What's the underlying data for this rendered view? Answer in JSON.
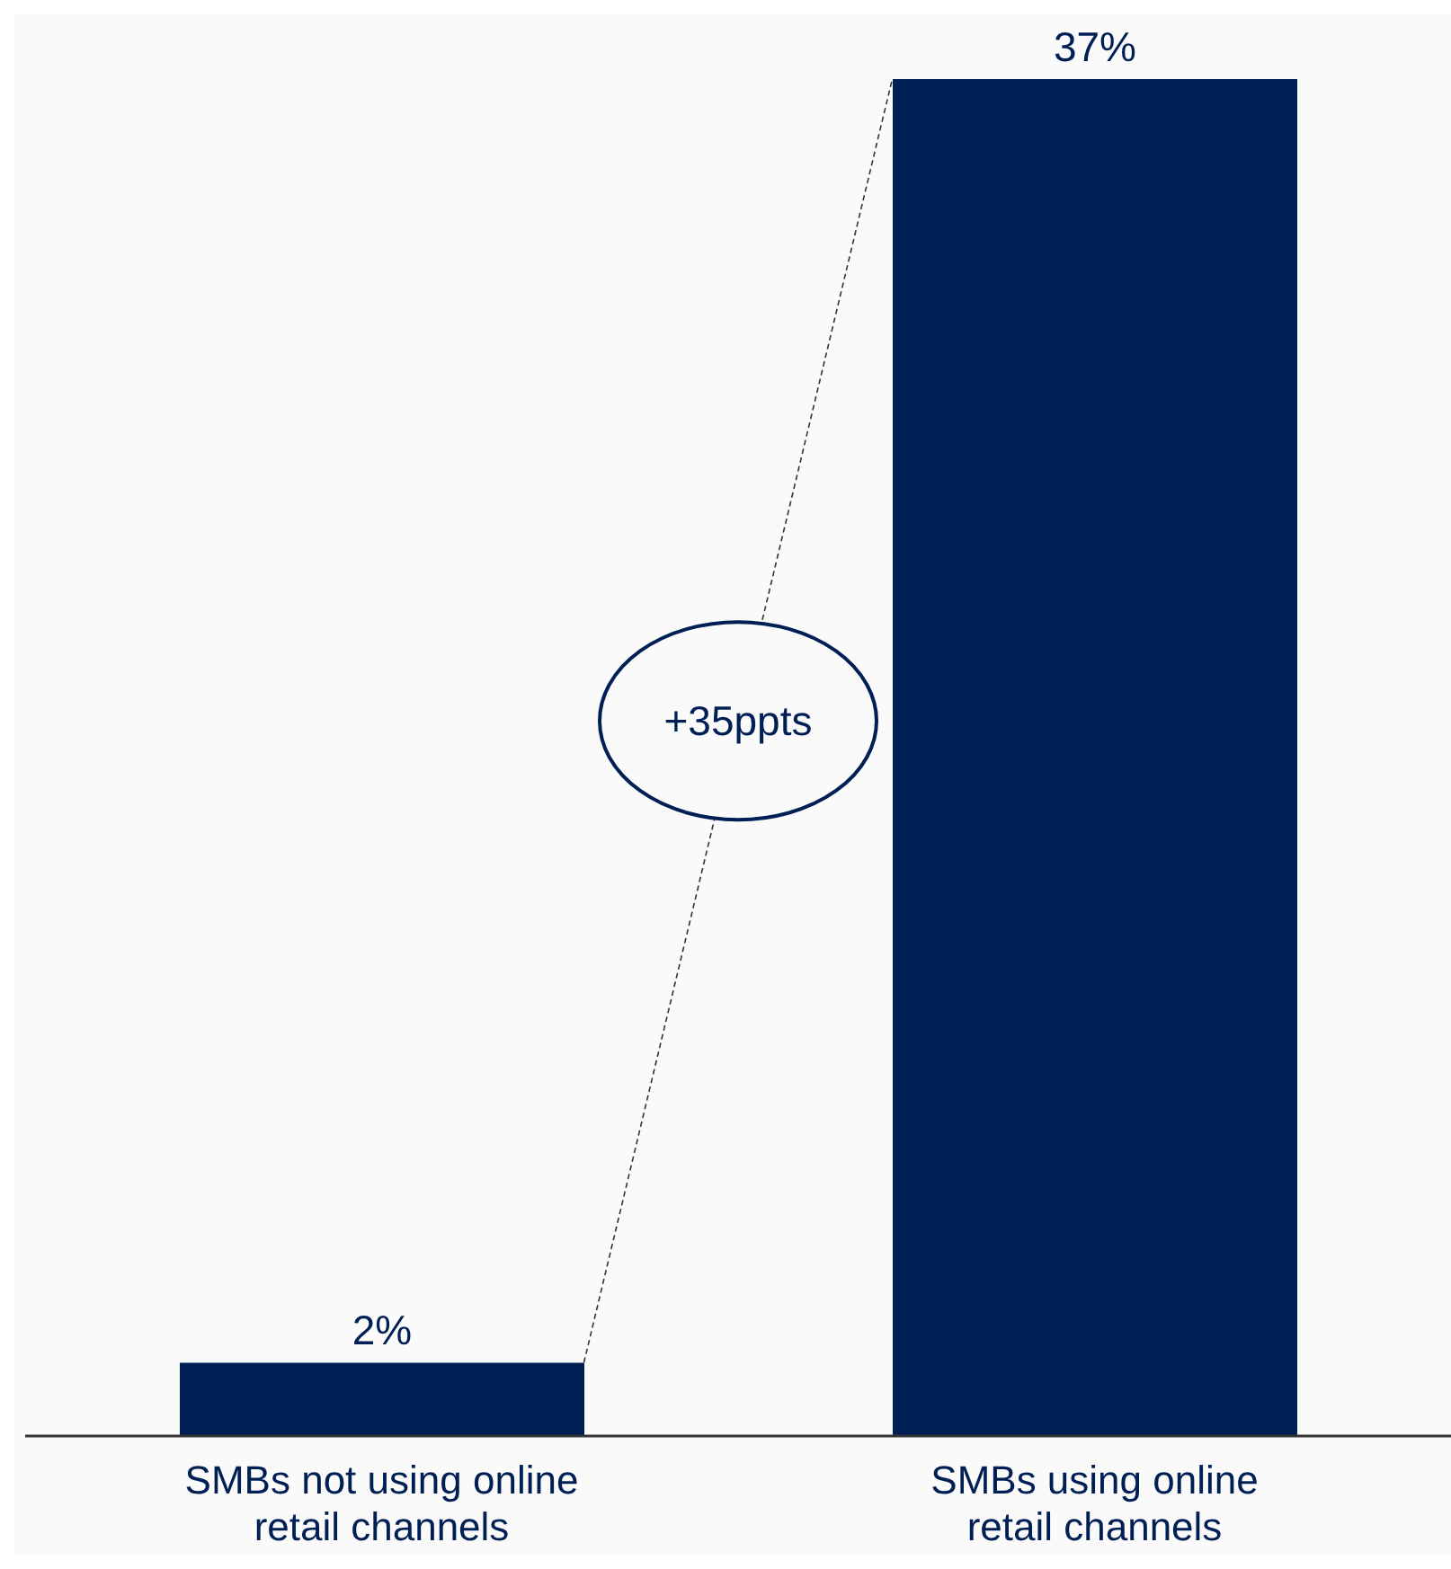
{
  "chart_data": {
    "type": "bar",
    "categories": [
      "SMBs not using online retail channels",
      "SMBs using online retail channels"
    ],
    "values": [
      2,
      37
    ],
    "color": "#001f54",
    "value_labels": [
      "2%",
      "37%"
    ],
    "annotations": [
      "+35ppts"
    ]
  }
}
